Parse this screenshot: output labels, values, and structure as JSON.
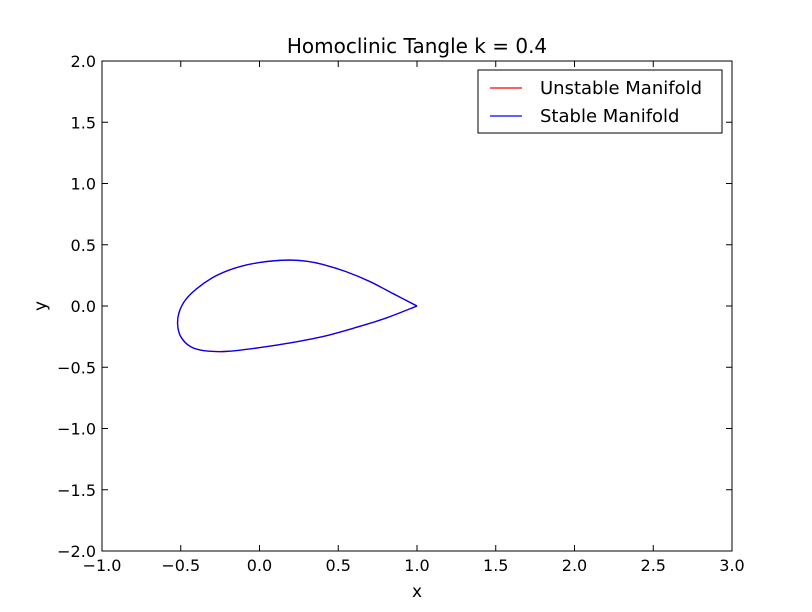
{
  "chart_data": {
    "type": "line",
    "title": "Homoclinic Tangle k = 0.4",
    "xlabel": "x",
    "ylabel": "y",
    "xlim": [
      -1.0,
      3.0
    ],
    "ylim": [
      -2.0,
      2.0
    ],
    "xticks": [
      -1.0,
      -0.5,
      0.0,
      0.5,
      1.0,
      1.5,
      2.0,
      2.5,
      3.0
    ],
    "xtick_labels": [
      "−1.0",
      "−0.5",
      "0.0",
      "0.5",
      "1.0",
      "1.5",
      "2.0",
      "2.5",
      "3.0"
    ],
    "yticks": [
      2.0,
      1.5,
      1.0,
      0.5,
      0.0,
      -0.5,
      -1.0,
      -1.5,
      -2.0
    ],
    "ytick_labels": [
      "2.0",
      "1.5",
      "1.0",
      "0.5",
      "0.0",
      "−0.5",
      "−1.0",
      "−1.5",
      "−2.0"
    ],
    "grid": false,
    "legend_position": "top-right",
    "series": [
      {
        "name": "Unstable Manifold",
        "color": "#ff0000",
        "x": [
          1.0,
          0.85,
          0.7,
          0.55,
          0.4,
          0.3,
          0.2,
          0.1,
          0.0,
          -0.1,
          -0.2,
          -0.3,
          -0.4,
          -0.47,
          -0.51,
          -0.52,
          -0.5,
          -0.44,
          -0.35,
          -0.2,
          0.0,
          0.2,
          0.4,
          0.6,
          0.8,
          1.0
        ],
        "y": [
          0.0,
          0.1,
          0.2,
          0.28,
          0.34,
          0.365,
          0.375,
          0.37,
          0.355,
          0.33,
          0.29,
          0.23,
          0.14,
          0.05,
          -0.05,
          -0.15,
          -0.25,
          -0.33,
          -0.365,
          -0.37,
          -0.34,
          -0.3,
          -0.25,
          -0.18,
          -0.1,
          0.0
        ]
      },
      {
        "name": "Stable Manifold",
        "color": "#0000ff",
        "x": [
          1.0,
          0.85,
          0.7,
          0.55,
          0.4,
          0.3,
          0.2,
          0.1,
          0.0,
          -0.1,
          -0.2,
          -0.3,
          -0.4,
          -0.47,
          -0.51,
          -0.52,
          -0.5,
          -0.44,
          -0.35,
          -0.2,
          0.0,
          0.2,
          0.4,
          0.6,
          0.8,
          1.0
        ],
        "y": [
          0.0,
          0.1,
          0.2,
          0.28,
          0.34,
          0.365,
          0.375,
          0.37,
          0.355,
          0.33,
          0.29,
          0.23,
          0.14,
          0.05,
          -0.05,
          -0.15,
          -0.25,
          -0.33,
          -0.365,
          -0.37,
          -0.34,
          -0.3,
          -0.25,
          -0.18,
          -0.1,
          0.0
        ]
      }
    ]
  }
}
